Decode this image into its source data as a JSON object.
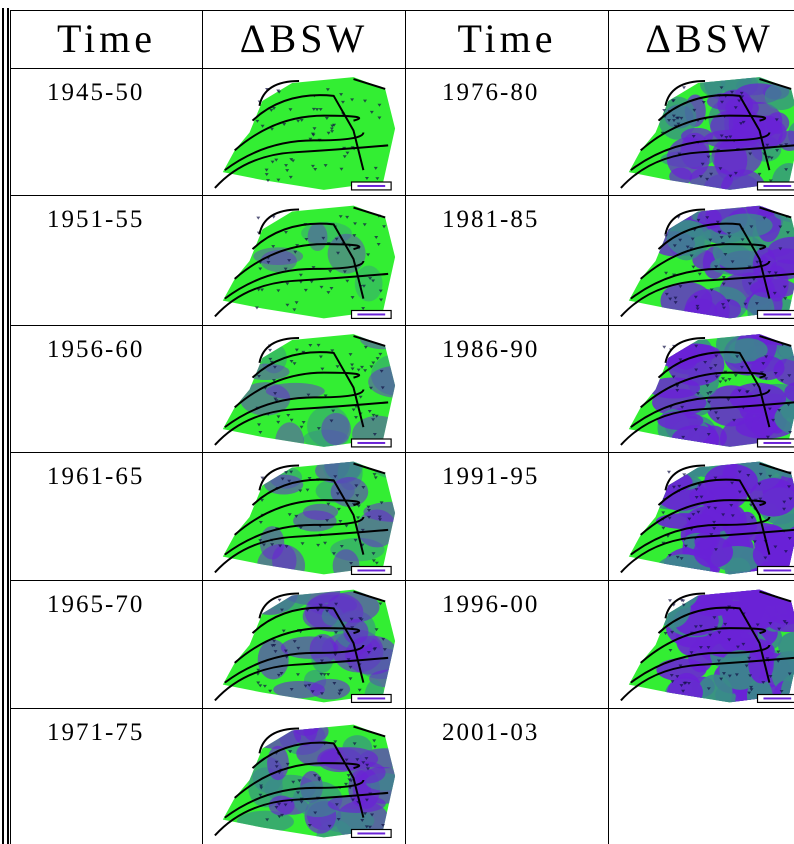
{
  "table": {
    "header": [
      "Time",
      "ΔBSW",
      "Time",
      "ΔBSW"
    ],
    "rows": [
      [
        "1945-50",
        "1976-80"
      ],
      [
        "1951-55",
        "1981-85"
      ],
      [
        "1956-60",
        "1986-90"
      ],
      [
        "1961-65",
        "1991-95"
      ],
      [
        "1965-70",
        "1996-00"
      ],
      [
        "1971-75",
        "2001-03"
      ]
    ]
  }
}
